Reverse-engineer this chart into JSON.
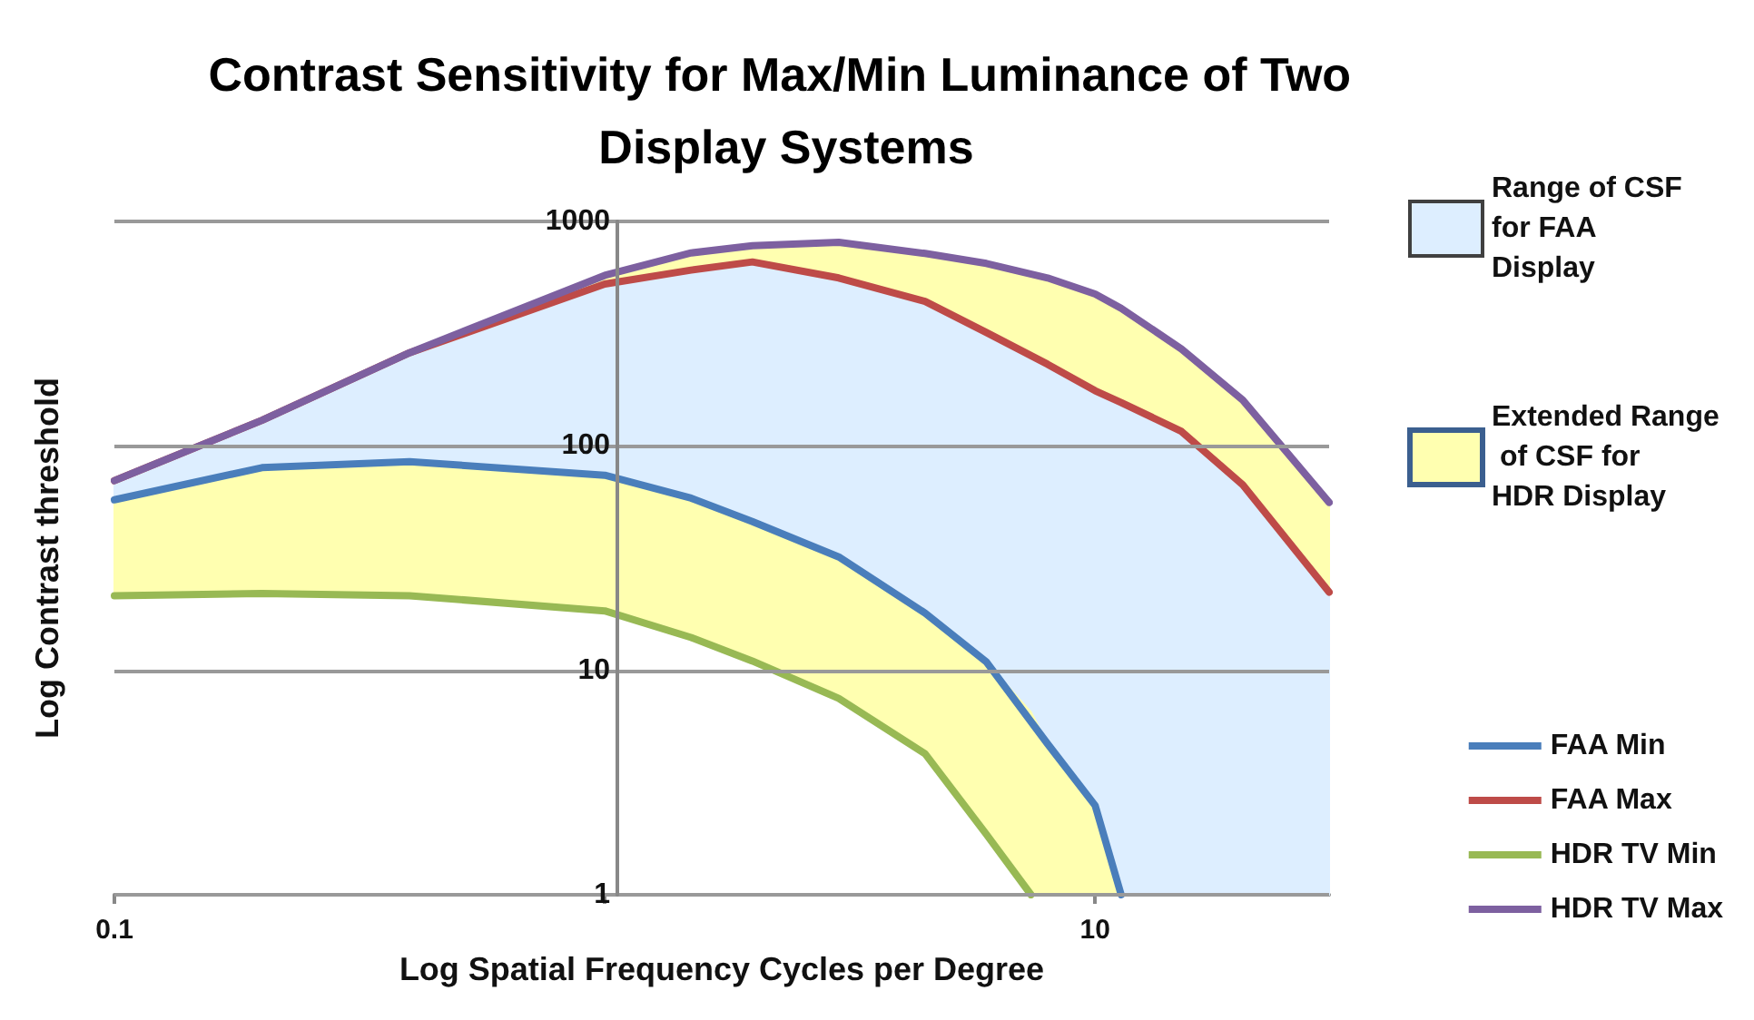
{
  "chart_data": {
    "type": "line",
    "title": "Contrast Sensitivity for Max/Min Luminance of Two Display Systems",
    "xlabel": "Log Spatial Frequency Cycles per Degree",
    "ylabel": "Log Contrast threshold",
    "log": "xy",
    "xlim": [
      0.1,
      30
    ],
    "xticks": [
      0.1,
      {
        "value": 1,
        "label": null
      },
      10
    ],
    "ylim": [
      1,
      1000
    ],
    "yticks": [
      1,
      10,
      100,
      1000
    ],
    "grid": "y",
    "legend": "right",
    "series": [
      {
        "type": "area",
        "name": "Range of CSF for FAA Display",
        "color": "#ddeeff",
        "x": [
          0.1,
          0.2,
          0.4,
          1,
          1.5,
          2,
          3,
          4.5,
          6,
          8,
          10,
          11.3,
          15,
          20,
          30
        ],
        "lower": [
          57.5,
          80,
          85,
          74,
          58.5,
          46,
          32,
          18,
          10.9,
          4.7,
          2.5,
          1,
          1,
          1,
          1
        ],
        "upper": [
          70,
          130,
          260,
          526,
          607,
          660,
          560,
          440,
          320,
          231,
          176,
          156,
          116,
          67,
          22.3
        ],
        "values": [
          null,
          null,
          null,
          null,
          null,
          null,
          null,
          null,
          null,
          null,
          null,
          null,
          null,
          null,
          null
        ]
      },
      {
        "type": "area",
        "name": "Extended Range of CSF for HDR Display",
        "color": "#ffffb0",
        "x": [
          0.1,
          0.2,
          0.4,
          1,
          1.5,
          2,
          3,
          4.5,
          6,
          7.4,
          8,
          10,
          11.3
        ],
        "lower": [
          21.5,
          22,
          21.5,
          18.4,
          14,
          11,
          7.5,
          4.25,
          1.86,
          1,
          1,
          1,
          1
        ],
        "upper": [
          57.5,
          80,
          85,
          74,
          58.5,
          46,
          32,
          18,
          10.9,
          6.5,
          4.7,
          2.5,
          1
        ],
        "values": [
          null,
          null,
          null,
          null,
          null,
          null,
          null,
          null,
          null,
          null,
          null,
          null,
          null
        ]
      },
      {
        "type": "area",
        "color": "#ffffb0",
        "x": [
          0.1,
          0.2,
          0.4,
          1,
          1.5,
          2,
          3,
          4.5,
          6,
          8,
          10,
          11.3,
          15,
          20,
          30
        ],
        "lower": [
          70,
          130,
          260,
          526,
          607,
          660,
          560,
          440,
          320,
          231,
          176,
          156,
          116,
          67,
          22.3
        ],
        "upper": [
          70,
          130,
          260,
          575,
          724,
          780,
          807,
          720,
          650,
          560,
          475,
          410,
          270,
          160,
          56
        ],
        "values": [
          null,
          null,
          null,
          null,
          null,
          null,
          null,
          null,
          null,
          null,
          null,
          null,
          null,
          null,
          null
        ]
      },
      {
        "name": "FAA Min",
        "color": "#4a7ebb",
        "x": [
          0.1,
          0.2,
          0.4,
          1,
          1.5,
          2,
          3,
          4.5,
          6,
          8,
          10,
          11.3
        ],
        "values": [
          57.5,
          80,
          85,
          74,
          58.5,
          46,
          32,
          18,
          10.9,
          4.7,
          2.5,
          1
        ]
      },
      {
        "name": "FAA Max",
        "color": "#be4b48",
        "x": [
          0.1,
          0.2,
          0.4,
          1,
          1.5,
          2,
          3,
          4.5,
          6,
          8,
          10,
          11.3,
          15,
          20,
          30
        ],
        "values": [
          70,
          130,
          260,
          526,
          607,
          660,
          560,
          440,
          320,
          231,
          176,
          156,
          116,
          67,
          22.3
        ]
      },
      {
        "name": "HDR TV Min",
        "color": "#98b954",
        "x": [
          0.1,
          0.2,
          0.4,
          1,
          1.5,
          2,
          3,
          4.5,
          6,
          7.4
        ],
        "values": [
          21.5,
          22,
          21.5,
          18.4,
          14,
          11,
          7.5,
          4.25,
          1.86,
          1
        ]
      },
      {
        "name": "HDR TV Max",
        "color": "#7d60a0",
        "x": [
          0.1,
          0.2,
          0.4,
          1,
          1.5,
          2,
          3,
          4.5,
          6,
          8,
          10,
          11.3,
          15,
          20,
          30
        ],
        "values": [
          70,
          130,
          260,
          575,
          724,
          780,
          807,
          720,
          650,
          560,
          475,
          410,
          270,
          160,
          56
        ]
      }
    ]
  }
}
